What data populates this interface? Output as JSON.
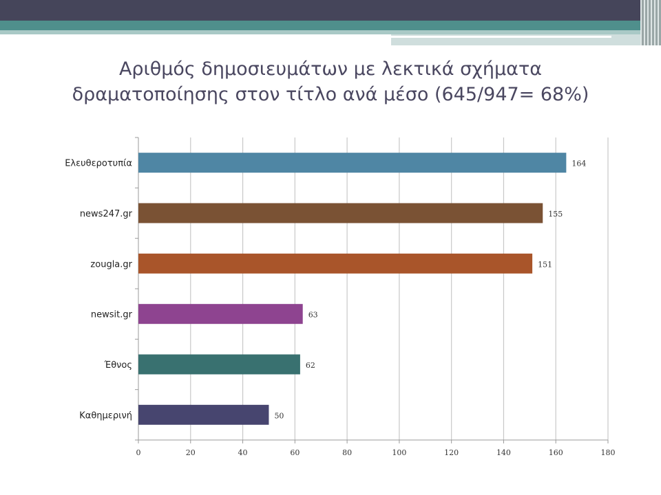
{
  "slide": {
    "title_line1": "Αριθμός δημοσιευμάτων με λεκτικά σχήματα",
    "title_line2": "δραματοποίησης στον τίτλο ανά μέσο (645/947= 68%)"
  },
  "theme": {
    "header_dark": "#45455a",
    "header_teal": "#4f8f8c",
    "header_light": "#a9c9c6",
    "title_color": "#4a4760",
    "grid_color": "#c8c8c8"
  },
  "chart_data": {
    "type": "bar",
    "orientation": "horizontal",
    "title": "",
    "xlabel": "",
    "ylabel": "",
    "xlim": [
      0,
      180
    ],
    "x_ticks": [
      0,
      20,
      40,
      60,
      80,
      100,
      120,
      140,
      160,
      180
    ],
    "grid": true,
    "legend": "none",
    "categories": [
      "Ελευθεροτυπία",
      "news247.gr",
      "zougla.gr",
      "newsit.gr",
      "Έθνος",
      "Καθημερινή"
    ],
    "values": [
      164,
      155,
      151,
      63,
      62,
      50
    ],
    "data_labels": [
      "164",
      "155",
      "151",
      "63",
      "62",
      "50"
    ],
    "colors": [
      "#4f86a4",
      "#7a5234",
      "#a9552a",
      "#8e4490",
      "#397170",
      "#47456f"
    ]
  }
}
